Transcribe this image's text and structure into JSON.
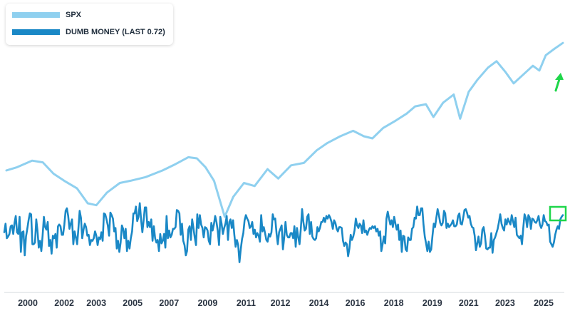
{
  "chart_data": {
    "type": "line",
    "title": "",
    "xlabel": "",
    "ylabel": "",
    "x_tick_labels": [
      "2000",
      "2002",
      "2003",
      "2005",
      "2007",
      "2009",
      "2011",
      "2012",
      "2014",
      "2016",
      "2018",
      "2019",
      "2021",
      "2023",
      "2025"
    ],
    "x_tick_years": [
      2000,
      2001.7,
      2003.2,
      2004.9,
      2006.6,
      2008.4,
      2010.2,
      2011.8,
      2013.6,
      2015.3,
      2017.1,
      2018.9,
      2020.6,
      2022.3,
      2024.1
    ],
    "x_range": [
      1998.9,
      2025.0
    ],
    "series": [
      {
        "name": "SPX",
        "label": "SPX",
        "color": "#8fd0ef",
        "scale": "log",
        "y_range": [
          700,
          7000
        ],
        "points": [
          [
            1999.0,
            1300
          ],
          [
            1999.5,
            1350
          ],
          [
            2000.2,
            1460
          ],
          [
            2000.7,
            1430
          ],
          [
            2001.2,
            1250
          ],
          [
            2001.7,
            1150
          ],
          [
            2002.3,
            1050
          ],
          [
            2002.8,
            880
          ],
          [
            2003.2,
            860
          ],
          [
            2003.7,
            1000
          ],
          [
            2004.3,
            1120
          ],
          [
            2004.8,
            1150
          ],
          [
            2005.5,
            1200
          ],
          [
            2006.3,
            1300
          ],
          [
            2006.9,
            1400
          ],
          [
            2007.5,
            1520
          ],
          [
            2007.9,
            1500
          ],
          [
            2008.3,
            1350
          ],
          [
            2008.7,
            1150
          ],
          [
            2009.2,
            750
          ],
          [
            2009.6,
            950
          ],
          [
            2010.1,
            1120
          ],
          [
            2010.6,
            1080
          ],
          [
            2011.2,
            1320
          ],
          [
            2011.7,
            1180
          ],
          [
            2012.3,
            1380
          ],
          [
            2012.9,
            1420
          ],
          [
            2013.5,
            1650
          ],
          [
            2014.0,
            1800
          ],
          [
            2014.6,
            1950
          ],
          [
            2015.2,
            2080
          ],
          [
            2015.7,
            1950
          ],
          [
            2016.1,
            1900
          ],
          [
            2016.6,
            2150
          ],
          [
            2017.2,
            2350
          ],
          [
            2017.7,
            2550
          ],
          [
            2018.1,
            2780
          ],
          [
            2018.6,
            2850
          ],
          [
            2018.95,
            2450
          ],
          [
            2019.4,
            2900
          ],
          [
            2019.9,
            3200
          ],
          [
            2020.2,
            2400
          ],
          [
            2020.6,
            3300
          ],
          [
            2021.0,
            3800
          ],
          [
            2021.5,
            4400
          ],
          [
            2021.9,
            4750
          ],
          [
            2022.3,
            4200
          ],
          [
            2022.7,
            3650
          ],
          [
            2023.2,
            4100
          ],
          [
            2023.6,
            4500
          ],
          [
            2023.9,
            4250
          ],
          [
            2024.2,
            5100
          ],
          [
            2024.6,
            5500
          ],
          [
            2025.0,
            5900
          ]
        ]
      },
      {
        "name": "DUMB MONEY",
        "label": "DUMB MONEY (LAST 0.72)",
        "last": 0.72,
        "color": "#1a88c6",
        "y_range": [
          0,
          1
        ],
        "values": [
          0.52,
          0.62,
          0.45,
          0.47,
          0.5,
          0.59,
          0.6,
          0.5,
          0.63,
          0.71,
          0.52,
          0.5,
          0.7,
          0.29,
          0.52,
          0.53,
          0.25,
          0.47,
          0.56,
          0.66,
          0.74,
          0.73,
          0.38,
          0.38,
          0.4,
          0.67,
          0.54,
          0.34,
          0.42,
          0.3,
          0.48,
          0.7,
          0.58,
          0.55,
          0.64,
          0.36,
          0.43,
          0.27,
          0.48,
          0.45,
          0.5,
          0.34,
          0.59,
          0.61,
          0.59,
          0.49,
          0.49,
          0.61,
          0.77,
          0.8,
          0.71,
          0.56,
          0.62,
          0.67,
          0.38,
          0.53,
          0.46,
          0.38,
          0.57,
          0.77,
          0.69,
          0.45,
          0.55,
          0.62,
          0.58,
          0.48,
          0.49,
          0.37,
          0.43,
          0.42,
          0.45,
          0.53,
          0.48,
          0.37,
          0.46,
          0.44,
          0.52,
          0.42,
          0.74,
          0.73,
          0.67,
          0.6,
          0.48,
          0.75,
          0.72,
          0.68,
          0.53,
          0.57,
          0.33,
          0.42,
          0.29,
          0.4,
          0.6,
          0.56,
          0.45,
          0.56,
          0.3,
          0.42,
          0.33,
          0.45,
          0.53,
          0.74,
          0.74,
          0.82,
          0.65,
          0.7,
          0.86,
          0.67,
          0.52,
          0.66,
          0.81,
          0.81,
          0.58,
          0.64,
          0.58,
          0.67,
          0.42,
          0.59,
          0.45,
          0.4,
          0.43,
          0.3,
          0.5,
          0.39,
          0.42,
          0.5,
          0.34,
          0.71,
          0.45,
          0.54,
          0.46,
          0.49,
          0.56,
          0.56,
          0.58,
          0.78,
          0.77,
          0.74,
          0.49,
          0.62,
          0.42,
          0.37,
          0.25,
          0.3,
          0.55,
          0.59,
          0.43,
          0.67,
          0.57,
          0.46,
          0.37,
          0.73,
          0.57,
          0.72,
          0.61,
          0.57,
          0.46,
          0.58,
          0.57,
          0.54,
          0.42,
          0.38,
          0.63,
          0.54,
          0.61,
          0.71,
          0.64,
          0.54,
          0.37,
          0.7,
          0.62,
          0.5,
          0.57,
          0.62,
          0.71,
          0.43,
          0.64,
          0.67,
          0.57,
          0.66,
          0.49,
          0.35,
          0.43,
          0.37,
          0.17,
          0.32,
          0.44,
          0.51,
          0.66,
          0.72,
          0.68,
          0.65,
          0.57,
          0.59,
          0.64,
          0.5,
          0.55,
          0.46,
          0.51,
          0.48,
          0.41,
          0.72,
          0.53,
          0.58,
          0.51,
          0.43,
          0.41,
          0.5,
          0.47,
          0.52,
          0.73,
          0.67,
          0.68,
          0.51,
          0.38,
          0.52,
          0.56,
          0.6,
          0.32,
          0.46,
          0.64,
          0.49,
          0.46,
          0.46,
          0.51,
          0.51,
          0.45,
          0.59,
          0.35,
          0.57,
          0.46,
          0.38,
          0.56,
          0.79,
          0.64,
          0.54,
          0.56,
          0.7,
          0.73,
          0.5,
          0.64,
          0.47,
          0.44,
          0.43,
          0.45,
          0.58,
          0.53,
          0.57,
          0.64,
          0.64,
          0.69,
          0.64,
          0.71,
          0.68,
          0.72,
          0.69,
          0.64,
          0.56,
          0.66,
          0.63,
          0.56,
          0.53,
          0.58,
          0.58,
          0.57,
          0.42,
          0.36,
          0.4,
          0.38,
          0.24,
          0.33,
          0.49,
          0.43,
          0.47,
          0.54,
          0.68,
          0.6,
          0.57,
          0.62,
          0.6,
          0.51,
          0.66,
          0.52,
          0.54,
          0.49,
          0.54,
          0.57,
          0.56,
          0.59,
          0.57,
          0.59,
          0.53,
          0.56,
          0.48,
          0.53,
          0.3,
          0.38,
          0.47,
          0.39,
          0.68,
          0.76,
          0.68,
          0.61,
          0.66,
          0.58,
          0.7,
          0.62,
          0.55,
          0.61,
          0.43,
          0.54,
          0.29,
          0.48,
          0.47,
          0.32,
          0.3,
          0.46,
          0.43,
          0.43,
          0.56,
          0.58,
          0.69,
          0.68,
          0.82,
          0.72,
          0.72,
          0.8,
          0.8,
          0.61,
          0.47,
          0.39,
          0.3,
          0.41,
          0.29,
          0.32,
          0.48,
          0.62,
          0.58,
          0.69,
          0.79,
          0.72,
          0.63,
          0.6,
          0.63,
          0.77,
          0.74,
          0.57,
          0.62,
          0.58,
          0.6,
          0.62,
          0.66,
          0.59,
          0.59,
          0.61,
          0.71,
          0.74,
          0.62,
          0.61,
          0.69,
          0.78,
          0.79,
          0.75,
          0.69,
          0.71,
          0.62,
          0.58,
          0.57,
          0.48,
          0.31,
          0.39,
          0.47,
          0.35,
          0.39,
          0.55,
          0.58,
          0.48,
          0.33,
          0.32,
          0.34,
          0.34,
          0.51,
          0.28,
          0.43,
          0.46,
          0.51,
          0.56,
          0.64,
          0.73,
          0.62,
          0.57,
          0.54,
          0.67,
          0.61,
          0.68,
          0.64,
          0.61,
          0.72,
          0.65,
          0.58,
          0.69,
          0.49,
          0.47,
          0.45,
          0.48,
          0.38,
          0.57,
          0.73,
          0.69,
          0.58,
          0.72,
          0.69,
          0.56,
          0.68,
          0.67,
          0.64,
          0.63,
          0.66,
          0.71,
          0.61,
          0.57,
          0.61,
          0.72,
          0.65,
          0.64,
          0.6,
          0.61,
          0.41,
          0.38,
          0.35,
          0.4,
          0.49,
          0.55,
          0.59,
          0.56,
          0.67,
          0.7,
          0.72
        ]
      }
    ],
    "annotations": [
      {
        "type": "arrow",
        "color": "#1fd64a",
        "target": "SPX end"
      },
      {
        "type": "box",
        "color": "#1fd64a",
        "target": "DUMB MONEY end"
      }
    ],
    "grid": false,
    "legend_position": "top-left"
  }
}
